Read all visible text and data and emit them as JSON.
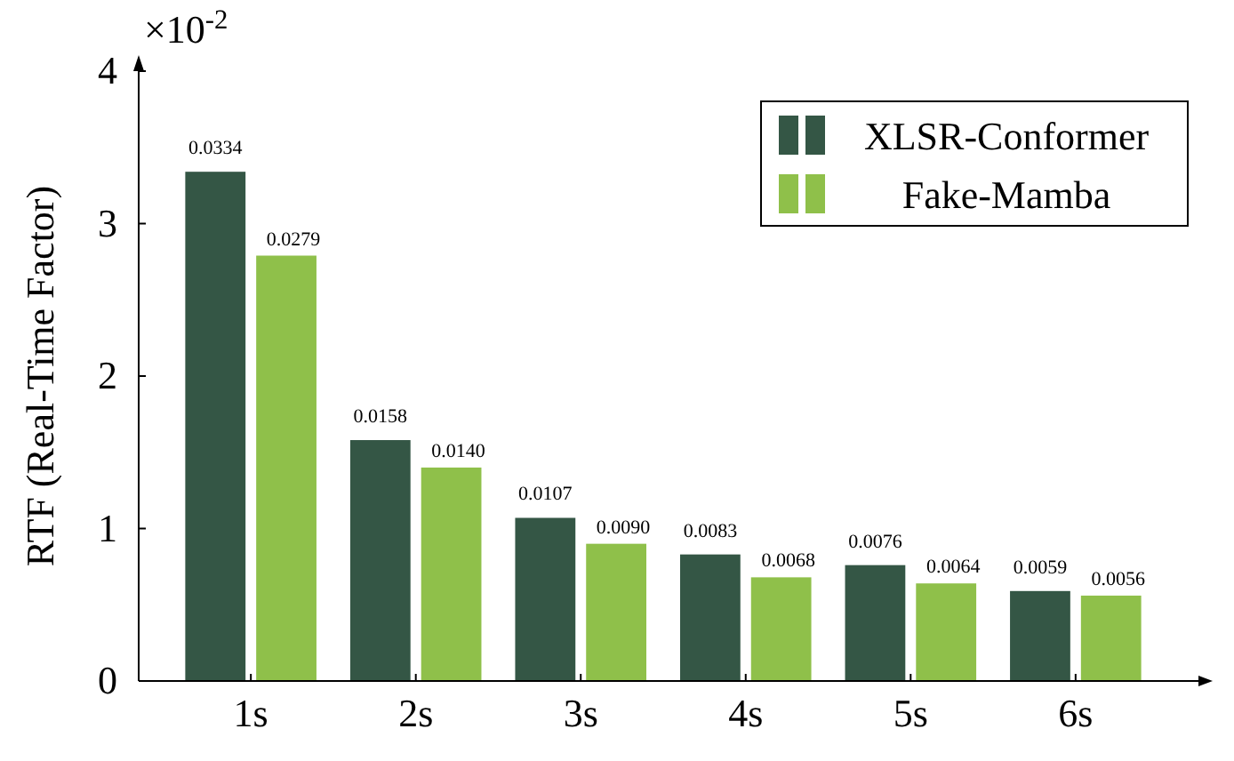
{
  "chart_data": {
    "type": "bar",
    "ylabel": "RTF (Real-Time Factor)",
    "annotations": [
      "×10$^{-2}$",
      {
        "text": "0.0334",
        "x": "1s",
        "y": 3.34
      },
      {
        "text": "0.0279",
        "x": "1s",
        "y": 2.79
      },
      {
        "text": "0.0158",
        "x": "2s",
        "y": 1.58
      },
      {
        "text": "0.0140",
        "x": "2s",
        "y": 1.4
      },
      {
        "text": "0.0107",
        "x": "3s",
        "y": 1.07
      },
      {
        "text": "0.0090",
        "x": "3s",
        "y": 0.9
      },
      {
        "text": "0.0083",
        "x": "4s",
        "y": 0.83
      },
      {
        "text": "0.0068",
        "x": "4s",
        "y": 0.68
      },
      {
        "text": "0.0076",
        "x": "5s",
        "y": 0.76
      },
      {
        "text": "0.0064",
        "x": "5s",
        "y": 0.64
      },
      {
        "text": "0.0059",
        "x": "6s",
        "y": 0.59
      },
      {
        "text": "0.0056",
        "x": "6s",
        "y": 0.56
      }
    ],
    "categories": [
      "1s",
      "2s",
      "3s",
      "4s",
      "5s",
      "6s"
    ],
    "series": [
      {
        "name": "XLSR-Conformer",
        "color": "#345645",
        "values": [
          3.34,
          1.58,
          1.07,
          0.83,
          0.76,
          0.59
        ]
      },
      {
        "name": "Fake-Mamba",
        "color": "#8fc04a",
        "values": [
          2.79,
          1.4,
          0.9,
          0.68,
          0.64,
          0.56
        ]
      }
    ],
    "ylim": [
      0,
      4
    ],
    "yticks": [
      0,
      1,
      2,
      3,
      4
    ],
    "legend": "top right",
    "grid": false
  }
}
